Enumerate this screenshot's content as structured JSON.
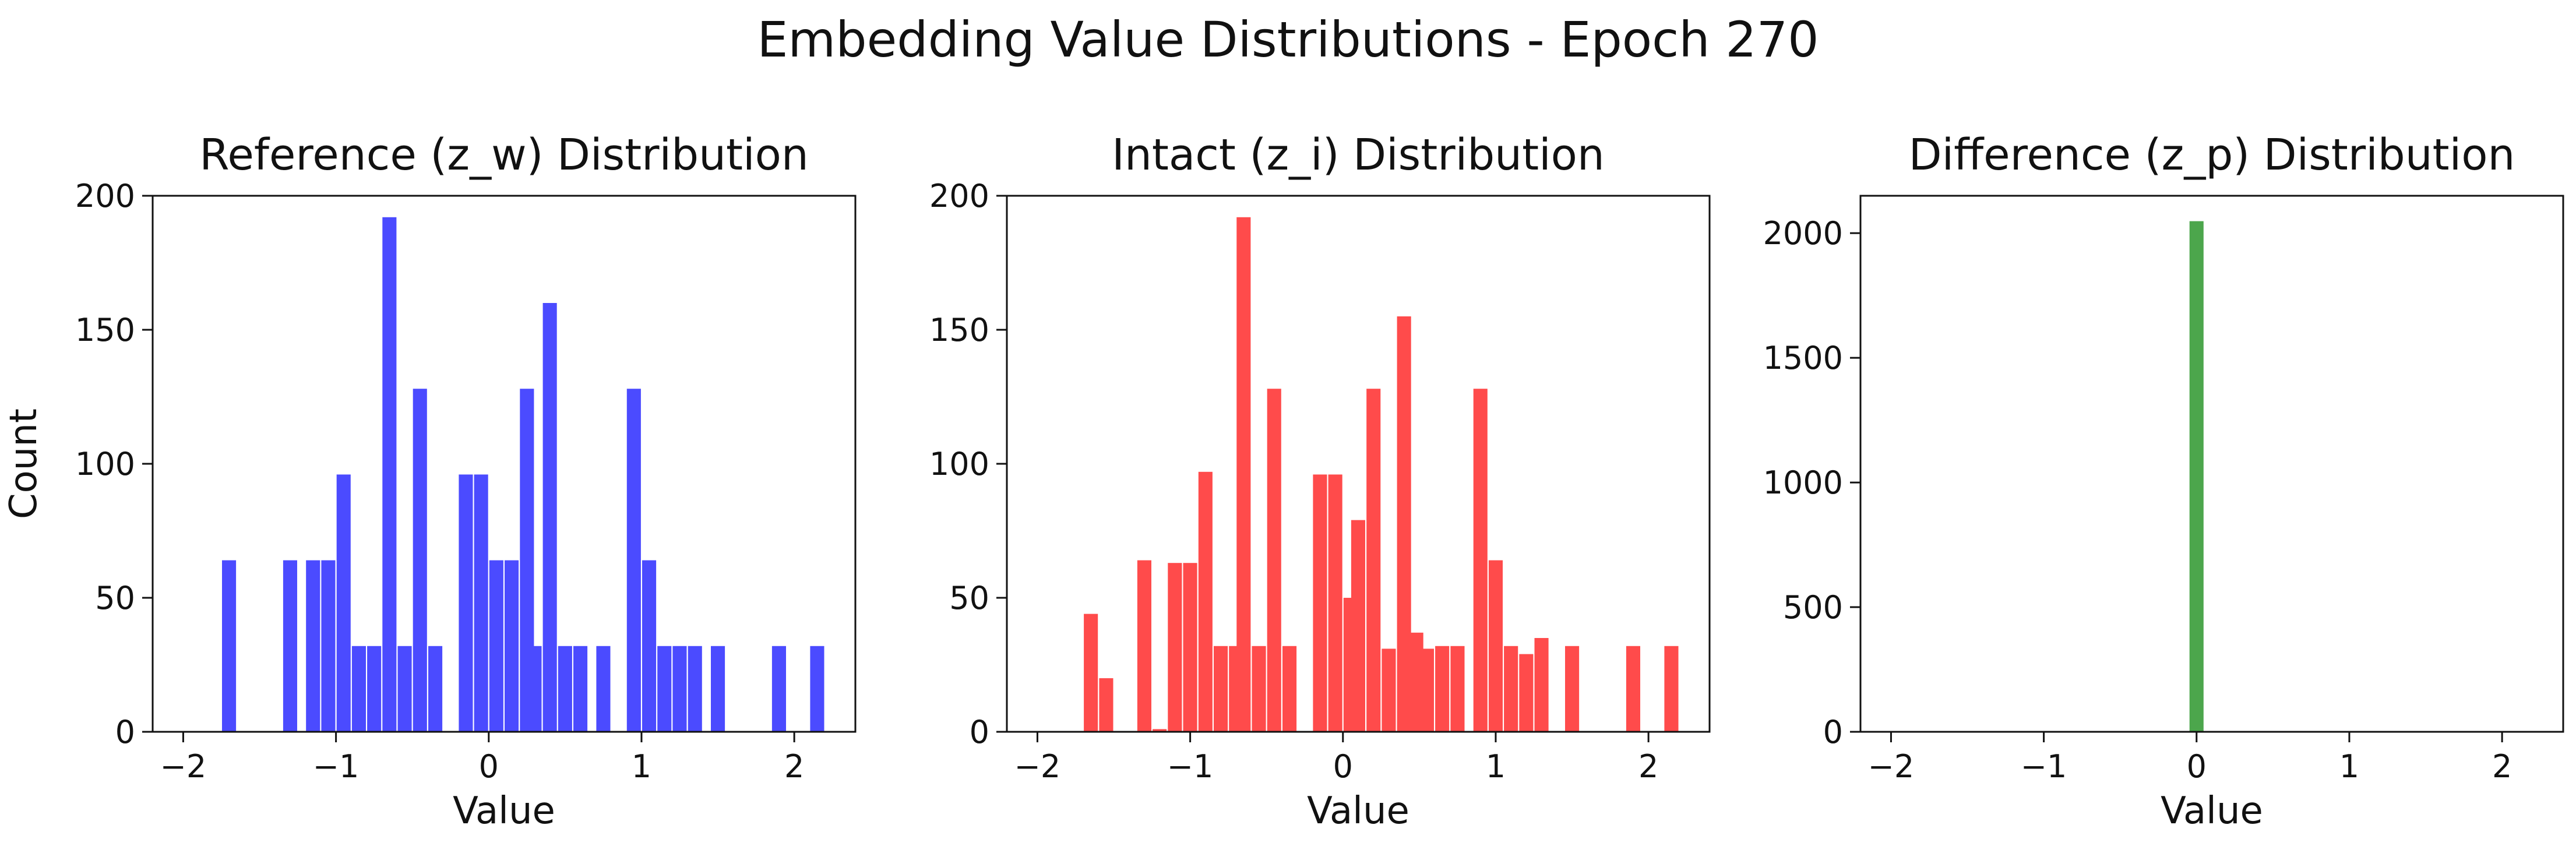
{
  "figure_title": "Embedding Value Distributions - Epoch 270",
  "chart_data": [
    {
      "type": "bar",
      "title": "Reference (z_w) Distribution",
      "xlabel": "Value",
      "ylabel": "Count",
      "xlim": [
        -2.2,
        2.4
      ],
      "ylim": [
        0,
        200
      ],
      "xticks": [
        -2,
        -1,
        0,
        1,
        2
      ],
      "yticks": [
        0,
        50,
        100,
        150,
        200
      ],
      "color": "#4b4bff",
      "bin_width": 0.092,
      "bins": [
        [
          -1.7,
          64
        ],
        [
          -1.3,
          64
        ],
        [
          -1.15,
          64
        ],
        [
          -1.05,
          64
        ],
        [
          -0.95,
          96
        ],
        [
          -0.85,
          32
        ],
        [
          -0.75,
          32
        ],
        [
          -0.65,
          192
        ],
        [
          -0.55,
          32
        ],
        [
          -0.45,
          128
        ],
        [
          -0.35,
          32
        ],
        [
          -0.15,
          96
        ],
        [
          -0.05,
          96
        ],
        [
          0.05,
          64
        ],
        [
          0.15,
          64
        ],
        [
          0.25,
          128
        ],
        [
          0.3,
          32
        ],
        [
          0.4,
          160
        ],
        [
          0.5,
          32
        ],
        [
          0.6,
          32
        ],
        [
          0.75,
          32
        ],
        [
          0.95,
          128
        ],
        [
          1.05,
          64
        ],
        [
          1.15,
          32
        ],
        [
          1.25,
          32
        ],
        [
          1.35,
          32
        ],
        [
          1.5,
          32
        ],
        [
          1.9,
          32
        ],
        [
          2.15,
          32
        ]
      ]
    },
    {
      "type": "bar",
      "title": "Intact (z_i) Distribution",
      "xlabel": "Value",
      "ylabel": "",
      "xlim": [
        -2.2,
        2.4
      ],
      "ylim": [
        0,
        200
      ],
      "xticks": [
        -2,
        -1,
        0,
        1,
        2
      ],
      "yticks": [
        0,
        50,
        100,
        150,
        200
      ],
      "color": "#ff4b4b",
      "bin_width": 0.092,
      "bins": [
        [
          -1.65,
          44
        ],
        [
          -1.55,
          20
        ],
        [
          -1.3,
          64
        ],
        [
          -1.2,
          1
        ],
        [
          -1.1,
          63
        ],
        [
          -1.0,
          63
        ],
        [
          -0.9,
          97
        ],
        [
          -0.8,
          32
        ],
        [
          -0.7,
          32
        ],
        [
          -0.65,
          192
        ],
        [
          -0.55,
          32
        ],
        [
          -0.45,
          128
        ],
        [
          -0.35,
          32
        ],
        [
          -0.15,
          96
        ],
        [
          -0.05,
          96
        ],
        [
          0.05,
          50
        ],
        [
          0.1,
          79
        ],
        [
          0.2,
          128
        ],
        [
          0.3,
          31
        ],
        [
          0.4,
          155
        ],
        [
          0.48,
          37
        ],
        [
          0.55,
          31
        ],
        [
          0.65,
          32
        ],
        [
          0.75,
          32
        ],
        [
          0.9,
          128
        ],
        [
          1.0,
          64
        ],
        [
          1.1,
          32
        ],
        [
          1.2,
          29
        ],
        [
          1.3,
          35
        ],
        [
          1.5,
          32
        ],
        [
          1.9,
          32
        ],
        [
          2.15,
          32
        ]
      ]
    },
    {
      "type": "bar",
      "title": "Difference (z_p) Distribution",
      "xlabel": "Value",
      "ylabel": "",
      "xlim": [
        -2.2,
        2.4
      ],
      "ylim": [
        0,
        2150
      ],
      "xticks": [
        -2,
        -1,
        0,
        1,
        2
      ],
      "yticks": [
        0,
        500,
        1000,
        1500,
        2000
      ],
      "color": "#4ca64c",
      "bin_width": 0.092,
      "bins": [
        [
          0.0,
          2048
        ]
      ]
    }
  ]
}
